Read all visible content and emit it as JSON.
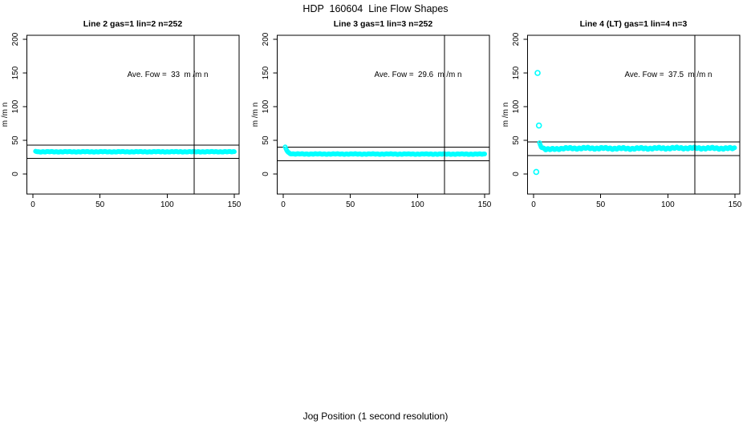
{
  "figure": {
    "title": "HDP  160604  Line Flow Shapes",
    "xlabel": "Jog Position (1 second resolution)",
    "background": "#ffffff"
  },
  "colors": {
    "points": "#00ffff",
    "lines": "#000000",
    "text": "#000000"
  },
  "chart_data": [
    {
      "type": "scatter",
      "title": "Line 2 gas=1 lin=2 n=252",
      "annotation": "Ave. Fow =  33  m /m n",
      "ave_flow": 33,
      "line": "Line 2",
      "gas": 1,
      "lin": 2,
      "n": 252,
      "ylabel": "m /m n",
      "xlim": [
        0,
        150
      ],
      "ylim": [
        0,
        200
      ],
      "xticks": [
        0,
        50,
        100,
        150
      ],
      "yticks": [
        0,
        50,
        100,
        150,
        200
      ],
      "hlines": [
        43,
        23
      ],
      "vline_x": 120,
      "series": {
        "band": [
          [
            2,
            34
          ],
          [
            3.5,
            33
          ],
          [
            150,
            33
          ]
        ],
        "jitter": 0.35,
        "outliers": []
      }
    },
    {
      "type": "scatter",
      "title": "Line 3 gas=1 lin=3 n=252",
      "annotation": "Ave. Fow =  29.6  m /m n",
      "ave_flow": 29.6,
      "line": "Line 3",
      "gas": 1,
      "lin": 3,
      "n": 252,
      "ylabel": "m /m n",
      "xlim": [
        0,
        150
      ],
      "ylim": [
        0,
        200
      ],
      "xticks": [
        0,
        50,
        100,
        150
      ],
      "yticks": [
        0,
        50,
        100,
        150,
        200
      ],
      "hlines": [
        39.6,
        19.6
      ],
      "vline_x": 120,
      "series": {
        "band": [
          [
            1.5,
            40
          ],
          [
            2.2,
            37
          ],
          [
            3.5,
            32.5
          ],
          [
            5,
            30.5
          ],
          [
            8,
            29.7
          ],
          [
            150,
            29.5
          ]
        ],
        "jitter": 0.35,
        "outliers": []
      }
    },
    {
      "type": "scatter",
      "title": "Line 4 (LT) gas=1 lin=4 n=3",
      "annotation": "Ave. Fow =  37.5  m /m n",
      "ave_flow": 37.5,
      "line": "Line 4 (LT)",
      "gas": 1,
      "lin": 4,
      "n": 3,
      "ylabel": "m /m n",
      "xlim": [
        0,
        150
      ],
      "ylim": [
        0,
        200
      ],
      "xticks": [
        0,
        50,
        100,
        150
      ],
      "yticks": [
        0,
        50,
        100,
        150,
        200
      ],
      "hlines": [
        47.5,
        27.5
      ],
      "vline_x": 120,
      "series": {
        "band": [
          [
            4.5,
            46
          ],
          [
            5.5,
            42
          ],
          [
            7,
            38.5
          ],
          [
            9,
            36.8
          ],
          [
            12,
            36.3
          ],
          [
            16,
            37.3
          ],
          [
            22,
            38
          ],
          [
            40,
            38.3
          ],
          [
            70,
            37.8
          ],
          [
            110,
            38.5
          ],
          [
            150,
            38
          ]
        ],
        "jitter": 1.0,
        "outliers": [
          [
            3,
            150
          ],
          [
            4,
            72
          ],
          [
            2,
            3
          ]
        ]
      }
    }
  ]
}
